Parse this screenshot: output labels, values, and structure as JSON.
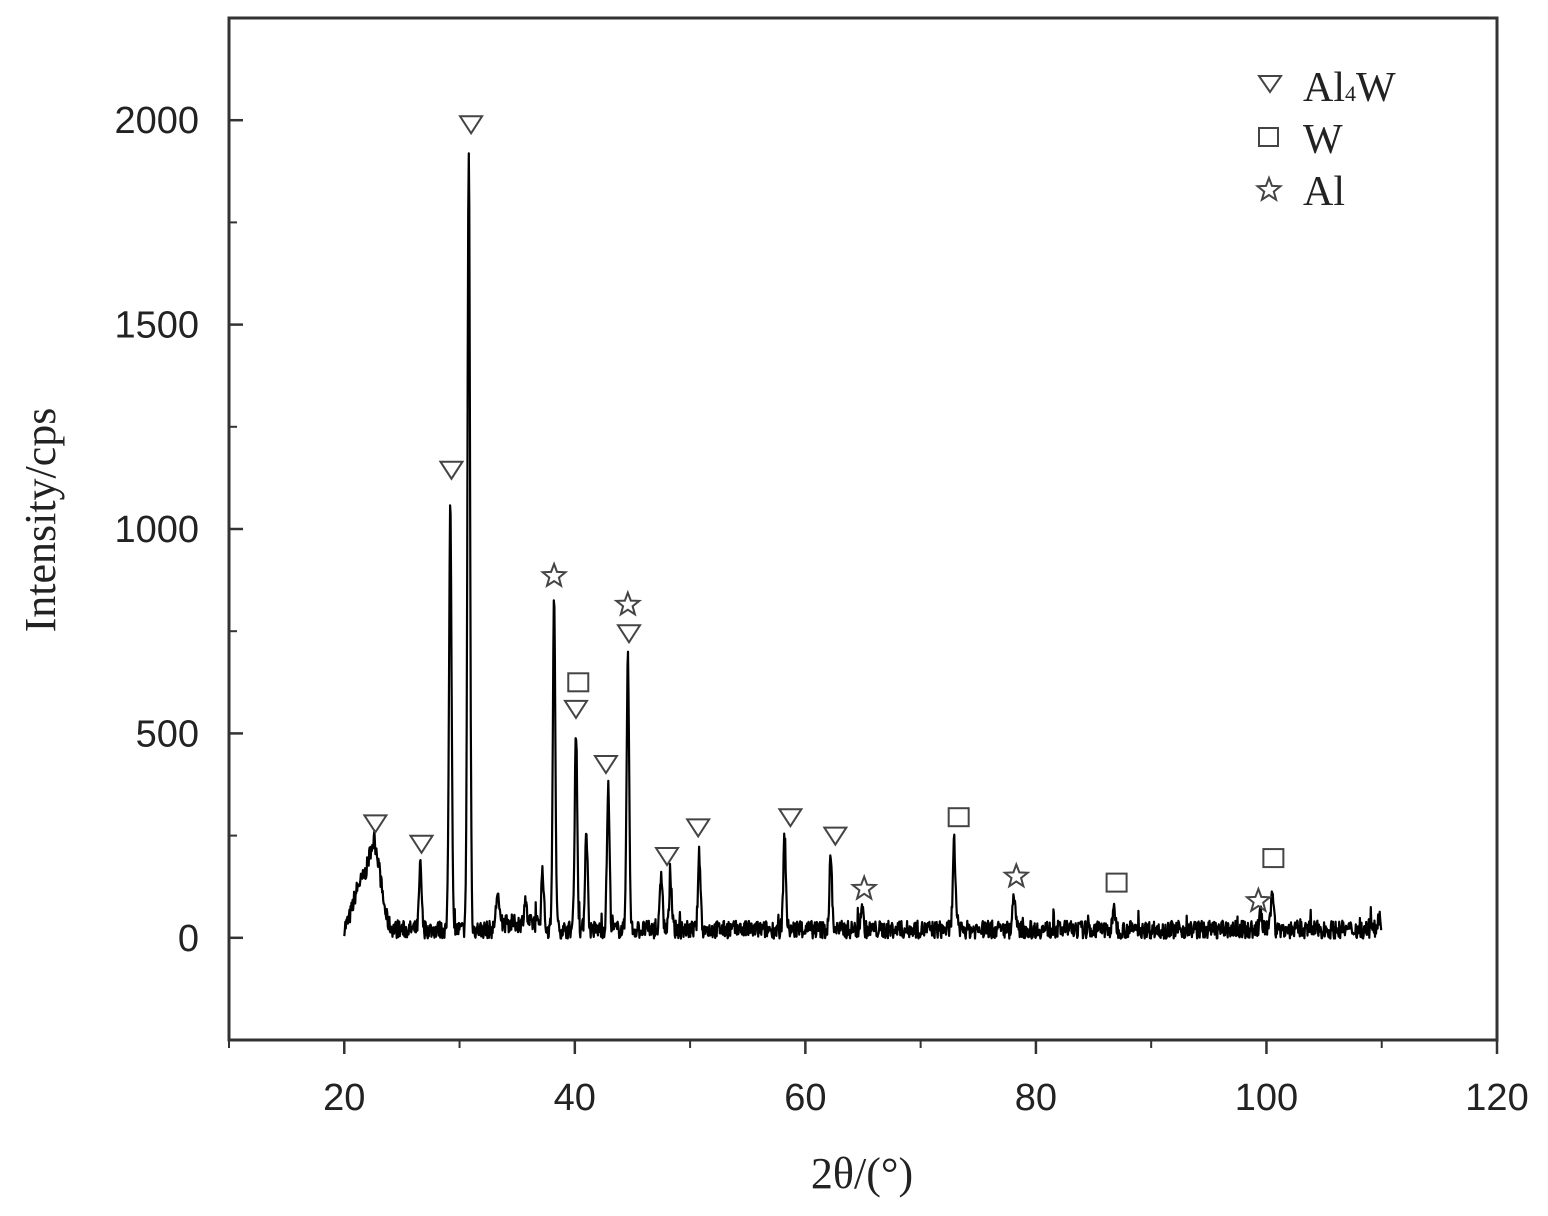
{
  "chart_data": {
    "type": "line",
    "xlabel": "2θ/(°)",
    "ylabel": "Intensity/cps",
    "xlim": [
      10,
      120
    ],
    "ylim": [
      -250,
      2250
    ],
    "xticks": [
      20,
      40,
      60,
      80,
      100,
      120
    ],
    "yticks": [
      0,
      500,
      1000,
      1500,
      2000
    ],
    "grid": false,
    "legend_position": "top-right",
    "legend": [
      {
        "symbol": "triangle-down",
        "label_main": "Al",
        "label_sub": "4",
        "label_end": "W"
      },
      {
        "symbol": "square",
        "label_main": "W",
        "label_sub": "",
        "label_end": ""
      },
      {
        "symbol": "star",
        "label_main": "Al",
        "label_sub": "",
        "label_end": ""
      }
    ],
    "series": [
      {
        "baseline": 20,
        "x_range": [
          20,
          110
        ],
        "peaks": [
          {
            "x": 21.3,
            "y": 120
          },
          {
            "x": 22.6,
            "y": 225
          },
          {
            "x": 26.6,
            "y": 175
          },
          {
            "x": 29.2,
            "y": 1080
          },
          {
            "x": 30.8,
            "y": 1930
          },
          {
            "x": 33.3,
            "y": 100
          },
          {
            "x": 35.7,
            "y": 80
          },
          {
            "x": 37.2,
            "y": 170
          },
          {
            "x": 38.2,
            "y": 820
          },
          {
            "x": 40.1,
            "y": 510
          },
          {
            "x": 41.0,
            "y": 270
          },
          {
            "x": 42.9,
            "y": 370
          },
          {
            "x": 44.6,
            "y": 690
          },
          {
            "x": 47.5,
            "y": 160
          },
          {
            "x": 48.3,
            "y": 140
          },
          {
            "x": 50.8,
            "y": 205
          },
          {
            "x": 58.2,
            "y": 250
          },
          {
            "x": 62.2,
            "y": 200
          },
          {
            "x": 64.9,
            "y": 80
          },
          {
            "x": 72.9,
            "y": 240
          },
          {
            "x": 78.1,
            "y": 115
          },
          {
            "x": 86.8,
            "y": 70
          },
          {
            "x": 99.5,
            "y": 60
          },
          {
            "x": 100.5,
            "y": 130
          },
          {
            "x": 109.8,
            "y": 60
          }
        ]
      }
    ],
    "phase_markers": [
      {
        "phase": "Al4W",
        "symbol": "triangle-down",
        "x": 22.7,
        "y": 280
      },
      {
        "phase": "Al4W",
        "symbol": "triangle-down",
        "x": 26.7,
        "y": 230
      },
      {
        "phase": "Al4W",
        "symbol": "triangle-down",
        "x": 29.3,
        "y": 1145
      },
      {
        "phase": "Al4W",
        "symbol": "triangle-down",
        "x": 31.0,
        "y": 1990
      },
      {
        "phase": "Al",
        "symbol": "star",
        "x": 38.2,
        "y": 885
      },
      {
        "phase": "W",
        "symbol": "square",
        "x": 40.3,
        "y": 625
      },
      {
        "phase": "Al4W",
        "symbol": "triangle-down",
        "x": 40.1,
        "y": 560
      },
      {
        "phase": "Al4W",
        "symbol": "triangle-down",
        "x": 42.7,
        "y": 425
      },
      {
        "phase": "Al",
        "symbol": "star",
        "x": 44.6,
        "y": 815
      },
      {
        "phase": "Al4W",
        "symbol": "triangle-down",
        "x": 44.7,
        "y": 745
      },
      {
        "phase": "Al4W",
        "symbol": "triangle-down",
        "x": 48.0,
        "y": 200
      },
      {
        "phase": "Al4W",
        "symbol": "triangle-down",
        "x": 50.7,
        "y": 270
      },
      {
        "phase": "Al4W",
        "symbol": "triangle-down",
        "x": 58.7,
        "y": 295
      },
      {
        "phase": "Al4W",
        "symbol": "triangle-down",
        "x": 62.6,
        "y": 250
      },
      {
        "phase": "Al",
        "symbol": "star",
        "x": 65.1,
        "y": 120
      },
      {
        "phase": "W",
        "symbol": "square",
        "x": 73.3,
        "y": 295
      },
      {
        "phase": "Al",
        "symbol": "star",
        "x": 78.3,
        "y": 150
      },
      {
        "phase": "W",
        "symbol": "square",
        "x": 87.0,
        "y": 135
      },
      {
        "phase": "Al",
        "symbol": "star",
        "x": 99.3,
        "y": 90
      },
      {
        "phase": "W",
        "symbol": "square",
        "x": 100.6,
        "y": 195
      }
    ]
  }
}
